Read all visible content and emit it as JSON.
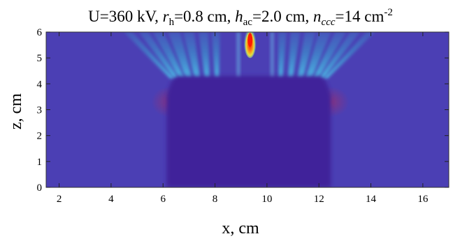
{
  "chart_data": {
    "type": "heatmap",
    "title_parts": {
      "u": "U=360 kV, ",
      "rh_sym": "r",
      "rh_sub": "h",
      "rh_val": "=0.8 cm, ",
      "hac_sym": "h",
      "hac_sub": "ac",
      "hac_val": "=2.0 cm, ",
      "nccc_sym": "n",
      "nccc_sub": "ccc",
      "nccc_val": "=14 cm",
      "nccc_exp": "-2"
    },
    "xlabel": "x, cm",
    "ylabel": "z, cm",
    "xlim": [
      1.5,
      17
    ],
    "ylim": [
      0,
      6
    ],
    "xticks": [
      2,
      4,
      6,
      8,
      10,
      12,
      14,
      16
    ],
    "yticks": [
      0,
      1,
      2,
      3,
      4,
      5,
      6
    ],
    "colors": {
      "background": "#4b3fb4",
      "plateau": "#40239a",
      "glow": "#b02a5a",
      "ray": "#3aa0d2",
      "hot": "#ff7a10",
      "peak": "#ff1a00"
    },
    "structure": {
      "plateau": {
        "x_start": 6.3,
        "x_end": 12.3,
        "z_top": 4.3
      },
      "hot_spot": {
        "x": 9.35,
        "z": 5.75,
        "peak_value": "max"
      },
      "ray_origins_z": 4.2
    }
  }
}
